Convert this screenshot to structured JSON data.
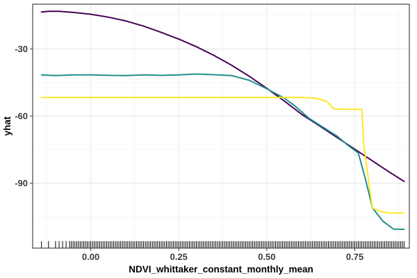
{
  "chart_data": {
    "type": "line",
    "title": "",
    "xlabel": "NDVI_whittaker_constant_monthly_mean",
    "ylabel": "yhat",
    "xlim": [
      -0.165,
      0.905
    ],
    "ylim": [
      -119,
      -10
    ],
    "x_ticks": [
      0.0,
      0.25,
      0.5,
      0.75
    ],
    "x_tick_labels": [
      "0.00",
      "0.25",
      "0.50",
      "0.75"
    ],
    "y_ticks": [
      -30,
      -60,
      -90
    ],
    "y_tick_labels": [
      "-30",
      "-60",
      "-90"
    ],
    "grid": true,
    "legend": "none",
    "series": [
      {
        "name": "series-1",
        "color": "#440154",
        "x": [
          -0.14,
          -0.12,
          -0.09,
          -0.05,
          0.0,
          0.05,
          0.1,
          0.15,
          0.2,
          0.25,
          0.3,
          0.35,
          0.4,
          0.45,
          0.5,
          0.55,
          0.6,
          0.65,
          0.7,
          0.75,
          0.8,
          0.85,
          0.89
        ],
        "values": [
          -13.5,
          -13.2,
          -13.2,
          -13.7,
          -14.5,
          -15.8,
          -17.5,
          -19.8,
          -22.6,
          -25.6,
          -29.0,
          -32.9,
          -37.3,
          -42.2,
          -47.6,
          -53.3,
          -59.3,
          -64.4,
          -69.6,
          -74.8,
          -80.0,
          -85.2,
          -89.2
        ]
      },
      {
        "name": "series-2",
        "color": "#21908C",
        "x": [
          -0.14,
          -0.1,
          -0.05,
          0.0,
          0.05,
          0.1,
          0.15,
          0.2,
          0.25,
          0.3,
          0.35,
          0.4,
          0.45,
          0.5,
          0.55,
          0.58,
          0.62,
          0.66,
          0.7,
          0.73,
          0.76,
          0.78,
          0.8,
          0.83,
          0.86,
          0.89
        ],
        "values": [
          -41.6,
          -41.9,
          -41.6,
          -41.6,
          -41.8,
          -41.9,
          -41.6,
          -41.8,
          -41.6,
          -41.2,
          -41.5,
          -41.9,
          -44.0,
          -47.8,
          -52.0,
          -55.5,
          -61.0,
          -65.0,
          -69.0,
          -73.0,
          -76.5,
          -88.0,
          -101.0,
          -107.0,
          -110.5,
          -110.6
        ]
      },
      {
        "name": "series-3",
        "color": "#FDE725",
        "x": [
          -0.14,
          0.0,
          0.1,
          0.2,
          0.3,
          0.4,
          0.5,
          0.6,
          0.64,
          0.67,
          0.69,
          0.72,
          0.75,
          0.77,
          0.775,
          0.79,
          0.8,
          0.82,
          0.85,
          0.89
        ],
        "values": [
          -51.7,
          -51.7,
          -51.7,
          -51.7,
          -51.7,
          -51.7,
          -51.7,
          -51.7,
          -52.0,
          -53.4,
          -56.7,
          -57.0,
          -57.0,
          -57.0,
          -72.0,
          -90.0,
          -101.0,
          -102.5,
          -103.3,
          -103.3
        ]
      }
    ],
    "rug_x": [
      -0.14,
      -0.12,
      -0.1,
      -0.09,
      -0.08,
      -0.07,
      -0.06,
      -0.055,
      -0.05,
      -0.045,
      -0.04,
      -0.035,
      -0.03,
      -0.025,
      -0.02,
      -0.015,
      -0.01,
      -0.005,
      0.0,
      0.005,
      0.01,
      0.015,
      0.02,
      0.025,
      0.03,
      0.035,
      0.04,
      0.045,
      0.05,
      0.055,
      0.06,
      0.065,
      0.07,
      0.075,
      0.08,
      0.085,
      0.09,
      0.095,
      0.1,
      0.105,
      0.11,
      0.115,
      0.12,
      0.125,
      0.13,
      0.135,
      0.14,
      0.145,
      0.15,
      0.155,
      0.16,
      0.165,
      0.17,
      0.175,
      0.18,
      0.185,
      0.19,
      0.195,
      0.2,
      0.205,
      0.21,
      0.215,
      0.22,
      0.225,
      0.23,
      0.235,
      0.24,
      0.245,
      0.25,
      0.255,
      0.26,
      0.265,
      0.27,
      0.275,
      0.28,
      0.285,
      0.29,
      0.295,
      0.3,
      0.305,
      0.31,
      0.315,
      0.32,
      0.325,
      0.33,
      0.335,
      0.34,
      0.345,
      0.35,
      0.355,
      0.36,
      0.365,
      0.37,
      0.375,
      0.38,
      0.385,
      0.39,
      0.395,
      0.4,
      0.405,
      0.41,
      0.415,
      0.42,
      0.425,
      0.43,
      0.435,
      0.44,
      0.445,
      0.45,
      0.455,
      0.46,
      0.465,
      0.47,
      0.475,
      0.48,
      0.485,
      0.49,
      0.495,
      0.5,
      0.505,
      0.51,
      0.515,
      0.52,
      0.525,
      0.53,
      0.535,
      0.54,
      0.545,
      0.55,
      0.555,
      0.56,
      0.565,
      0.57,
      0.575,
      0.58,
      0.585,
      0.59,
      0.595,
      0.6,
      0.605,
      0.61,
      0.615,
      0.62,
      0.625,
      0.63,
      0.635,
      0.64,
      0.645,
      0.65,
      0.655,
      0.66,
      0.665,
      0.67,
      0.675,
      0.68,
      0.685,
      0.69,
      0.695,
      0.7,
      0.705,
      0.71,
      0.715,
      0.72,
      0.725,
      0.73,
      0.735,
      0.74,
      0.745,
      0.75,
      0.755,
      0.76,
      0.765,
      0.77,
      0.775,
      0.78,
      0.785,
      0.79,
      0.795,
      0.8,
      0.805,
      0.81,
      0.815,
      0.82,
      0.825,
      0.83,
      0.835,
      0.84,
      0.845,
      0.85,
      0.855,
      0.86,
      0.865,
      0.87,
      0.875,
      0.88,
      0.885,
      0.89
    ]
  }
}
